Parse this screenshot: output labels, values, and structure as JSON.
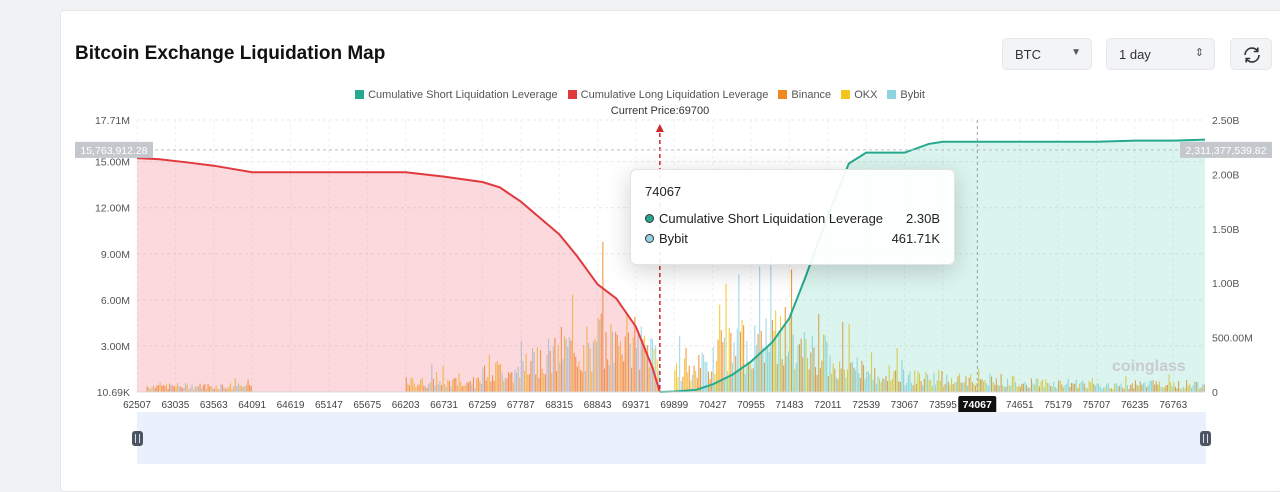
{
  "header": {
    "title": "Bitcoin Exchange Liquidation Map"
  },
  "controls": {
    "symbol": "BTC",
    "range": "1 day",
    "symbol_icon": "caret-down-icon",
    "range_icon": "updown-icon",
    "refresh_icon": "refresh-icon"
  },
  "legend": [
    {
      "label": "Cumulative Short Liquidation Leverage",
      "color": "#26a98f"
    },
    {
      "label": "Cumulative Long Liquidation Leverage",
      "color": "#e0393e"
    },
    {
      "label": "Binance",
      "color": "#f0891e"
    },
    {
      "label": "OKX",
      "color": "#f5c31e"
    },
    {
      "label": "Bybit",
      "color": "#8fd3df"
    }
  ],
  "current_price_label": "Current Price:69700",
  "tooltip": {
    "title": "74067",
    "rows": [
      {
        "label": "Cumulative Short Liquidation Leverage",
        "value": "2.30B"
      },
      {
        "label": "Bybit",
        "value": "461.71K"
      }
    ]
  },
  "watermark": "coinglass",
  "chart_data": {
    "type": "area",
    "x_ticks": [
      "62507",
      "63035",
      "63563",
      "64091",
      "64619",
      "65147",
      "65675",
      "66203",
      "66731",
      "67259",
      "67787",
      "68315",
      "68843",
      "69371",
      "69899",
      "70427",
      "70955",
      "71483",
      "72011",
      "72539",
      "73067",
      "73595",
      "74651",
      "75179",
      "75707",
      "76235",
      "76763"
    ],
    "x_range": [
      62507,
      77200
    ],
    "current_price": 69700,
    "crosshair_x": 74067,
    "crosshair_x_label": "74067",
    "y_left": {
      "ticks": [
        "17.71M",
        "15.00M",
        "12.00M",
        "9.00M",
        "6.00M",
        "3.00M",
        "10.69K"
      ],
      "tick_values": [
        17.71,
        15.0,
        12.0,
        9.0,
        6.0,
        3.0,
        0.01069
      ],
      "range": [
        0,
        17.71
      ],
      "unit": "M",
      "marker_label": "15,763,912.28",
      "marker_value": 15.7639
    },
    "y_right": {
      "ticks": [
        "2.50B",
        "2.00B",
        "1.50B",
        "1.00B",
        "500.00M",
        "0"
      ],
      "tick_values": [
        2.5,
        2.0,
        1.5,
        1.0,
        0.5,
        0
      ],
      "range": [
        0,
        2.5
      ],
      "unit": "B",
      "marker_label": "2,311,377,539.82",
      "marker_value": 2.3114
    },
    "series": [
      {
        "name": "Cumulative Long Liquidation Leverage",
        "axis": "right",
        "color": "#e0393e",
        "x": [
          62507,
          62800,
          63200,
          63563,
          64091,
          66203,
          66731,
          67259,
          67500,
          67787,
          68050,
          68315,
          68560,
          68843,
          69100,
          69371,
          69600,
          69700
        ],
        "y": [
          2.15,
          2.14,
          2.11,
          2.08,
          2.02,
          2.02,
          1.98,
          1.93,
          1.88,
          1.75,
          1.6,
          1.45,
          1.25,
          0.99,
          0.86,
          0.6,
          0.22,
          0.0
        ]
      },
      {
        "name": "Cumulative Short Liquidation Leverage",
        "axis": "right",
        "color": "#26a98f",
        "x": [
          69700,
          69899,
          70200,
          70427,
          70700,
          70955,
          71250,
          71483,
          71700,
          72011,
          72300,
          72539,
          72800,
          73067,
          73400,
          73595,
          74067,
          74651,
          75179,
          75707,
          76235,
          76763,
          77200
        ],
        "y": [
          0.0,
          0.005,
          0.02,
          0.07,
          0.16,
          0.28,
          0.46,
          0.68,
          1.05,
          1.62,
          2.1,
          2.2,
          2.2,
          2.2,
          2.28,
          2.3,
          2.3,
          2.3,
          2.3,
          2.3,
          2.31,
          2.31,
          2.32
        ]
      }
    ],
    "bar_series": [
      "Binance",
      "OKX",
      "Bybit"
    ],
    "bar_clusters": [
      {
        "from": 62640,
        "to": 64091,
        "level": 0.6
      },
      {
        "from": 66203,
        "to": 67259,
        "level": 1.0
      },
      {
        "from": 67259,
        "to": 67787,
        "level": 2.2
      },
      {
        "from": 67787,
        "to": 68315,
        "level": 3.6
      },
      {
        "from": 68315,
        "to": 68843,
        "level": 4.4
      },
      {
        "from": 68843,
        "to": 69371,
        "level": 5.2
      },
      {
        "from": 69371,
        "to": 69700,
        "level": 4.5
      },
      {
        "from": 69899,
        "to": 70427,
        "level": 2.6
      },
      {
        "from": 70427,
        "to": 70955,
        "level": 4.6
      },
      {
        "from": 70955,
        "to": 71483,
        "level": 5.8
      },
      {
        "from": 71483,
        "to": 72011,
        "level": 4.2
      },
      {
        "from": 72011,
        "to": 72539,
        "level": 2.4
      },
      {
        "from": 72539,
        "to": 73067,
        "level": 1.8
      },
      {
        "from": 73067,
        "to": 73595,
        "level": 1.5
      },
      {
        "from": 73595,
        "to": 74651,
        "level": 1.2
      },
      {
        "from": 74651,
        "to": 75707,
        "level": 0.9
      },
      {
        "from": 75707,
        "to": 76235,
        "level": 0.6
      },
      {
        "from": 76235,
        "to": 77200,
        "level": 0.8
      }
    ]
  }
}
